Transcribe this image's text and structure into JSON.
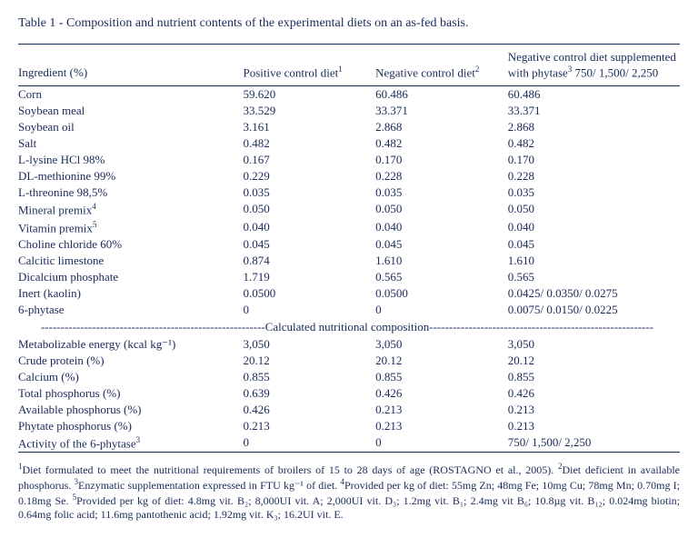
{
  "title": "Table 1 - Composition and nutrient contents of the experimental diets on an as-fed basis.",
  "headers": {
    "h0": "Ingredient (%)",
    "h1": "Positive control diet",
    "h2": "Negative control diet",
    "h3": "Negative control diet supplemented with phytase",
    "h3b": " 750/ 1,500/ 2,250",
    "sup1": "1",
    "sup2": "2",
    "sup3": "3"
  },
  "rows": [
    {
      "n": "Corn",
      "a": "59.620",
      "b": "60.486",
      "c": "60.486"
    },
    {
      "n": "Soybean meal",
      "a": "33.529",
      "b": "33.371",
      "c": "33.371"
    },
    {
      "n": "Soybean oil",
      "a": "3.161",
      "b": "2.868",
      "c": "2.868"
    },
    {
      "n": "Salt",
      "a": "0.482",
      "b": "0.482",
      "c": "0.482"
    },
    {
      "n": "L-lysine HCl 98%",
      "a": "0.167",
      "b": "0.170",
      "c": "0.170"
    },
    {
      "n": "DL-methionine 99%",
      "a": "0.229",
      "b": "0.228",
      "c": "0.228"
    },
    {
      "n": "L-threonine 98,5%",
      "a": "0.035",
      "b": "0.035",
      "c": "0.035"
    }
  ],
  "row_mineral": {
    "n": "Mineral premix",
    "s": "4",
    "a": "0.050",
    "b": "0.050",
    "c": "0.050"
  },
  "row_vitamin": {
    "n": "Vitamin premix",
    "s": "5",
    "a": "0.040",
    "b": "0.040",
    "c": "0.040"
  },
  "rows2": [
    {
      "n": "Choline chloride 60%",
      "a": "0.045",
      "b": "0.045",
      "c": "0.045"
    },
    {
      "n": "Calcitic limestone",
      "a": "0.874",
      "b": "1.610",
      "c": "1.610"
    },
    {
      "n": "Dicalcium phosphate",
      "a": "1.719",
      "b": "0.565",
      "c": "0.565"
    },
    {
      "n": "Inert (kaolin)",
      "a": "0.0500",
      "b": "0.0500",
      "c": "0.0425/ 0.0350/ 0.0275"
    },
    {
      "n": "6-phytase",
      "a": "0",
      "b": "0",
      "c": "0.0075/ 0.0150/ 0.0225"
    }
  ],
  "section_label": "---------------------------------------------------------Calculated nutritional composition---------------------------------------------------------",
  "rows3": [
    {
      "n": "Metabolizable energy (kcal kg⁻¹)",
      "a": "3,050",
      "b": "3,050",
      "c": "3,050"
    },
    {
      "n": "Crude protein (%)",
      "a": "20.12",
      "b": "20.12",
      "c": "20.12"
    },
    {
      "n": "Calcium (%)",
      "a": "0.855",
      "b": "0.855",
      "c": "0.855"
    },
    {
      "n": "Total phosphorus (%)",
      "a": "0.639",
      "b": "0.426",
      "c": "0.426"
    },
    {
      "n": "Available phosphorus (%)",
      "a": "0.426",
      "b": "0.213",
      "c": "0.213"
    },
    {
      "n": "Phytate phosphorus (%)",
      "a": "0.213",
      "b": "0.213",
      "c": "0.213"
    }
  ],
  "row_activity": {
    "n": "Activity of the 6-phytase",
    "s": "3",
    "a": "0",
    "b": "0",
    "c": "750/ 1,500/ 2,250"
  },
  "footnote": {
    "s1": "1",
    "t1": "Diet formulated to meet the nutritional requirements of broilers of 15 to 28 days of age (ROSTAGNO et al., 2005). ",
    "s2": "2",
    "t2": "Diet deficient in available phosphorus. ",
    "s3": "3",
    "t3": "Enzymatic supplementation expressed in FTU kg⁻¹ of diet. ",
    "s4": "4",
    "t4": "Provided per kg of diet: 55mg Zn; 48mg Fe; 10mg Cu; 78mg Mn; 0.70mg I; 0.18mg Se. ",
    "s5": "5",
    "t5": "Provided per kg of diet: 4.8mg vit. B₂; 8,000UI vit. A; 2,000UI vit. D₃; 1.2mg vit. B₁; 2.4mg vit B₆; 10.8µg vit. B₁₂; 0.024mg biotin; 0.64mg folic acid; 11.6mg pantothenic acid; 1.92mg vit. K₃; 16.2UI vit. E."
  }
}
